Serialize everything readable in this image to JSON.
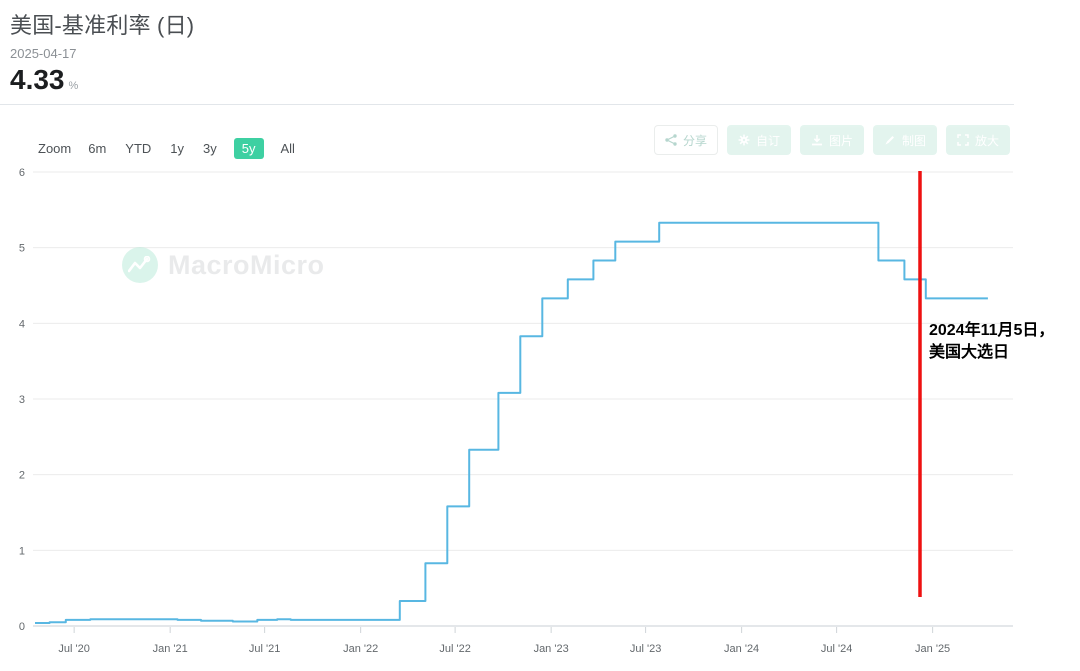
{
  "header": {
    "title": "美国-基准利率 (日)",
    "date": "2025-04-17",
    "value": "4.33",
    "unit": "%"
  },
  "toolbar": {
    "zoom_label": "Zoom",
    "ranges": [
      {
        "label": "6m",
        "selected": false
      },
      {
        "label": "YTD",
        "selected": false
      },
      {
        "label": "1y",
        "selected": false
      },
      {
        "label": "3y",
        "selected": false
      },
      {
        "label": "5y",
        "selected": true
      },
      {
        "label": "All",
        "selected": false
      }
    ],
    "actions": [
      {
        "label": "分享",
        "icon": "share-icon",
        "style": "outline"
      },
      {
        "label": "自订",
        "icon": "gear-icon",
        "style": "teal"
      },
      {
        "label": "图片",
        "icon": "download-icon",
        "style": "teal"
      },
      {
        "label": "制图",
        "icon": "pencil-icon",
        "style": "teal"
      },
      {
        "label": "放大",
        "icon": "expand-icon",
        "style": "teal"
      }
    ]
  },
  "watermark": {
    "text": "MacroMicro"
  },
  "annotation": {
    "line1": "2024年11月5日，",
    "line2": "美国大选日",
    "marked_date": "2024-11-05"
  },
  "colors": {
    "line": "#58b7e2",
    "selected_range_bg": "#3ed0a2",
    "red_line": "#ee1111",
    "grid": "#ebebeb",
    "axis": "#c9cfd4",
    "tick_label": "#63686c"
  },
  "chart_data": {
    "type": "line",
    "step": true,
    "title": "美国-基准利率 (日)",
    "ylabel": "",
    "xlabel": "",
    "ylim": [
      0,
      6
    ],
    "yticks": [
      0,
      1,
      2,
      3,
      4,
      5,
      6
    ],
    "x_domain": [
      "2020-04-17",
      "2025-06-04"
    ],
    "xticks": [
      [
        "2020-07-01",
        "Jul '20"
      ],
      [
        "2021-01-01",
        "Jan '21"
      ],
      [
        "2021-07-01",
        "Jul '21"
      ],
      [
        "2022-01-01",
        "Jan '22"
      ],
      [
        "2022-07-01",
        "Jul '22"
      ],
      [
        "2023-01-01",
        "Jan '23"
      ],
      [
        "2023-07-01",
        "Jul '23"
      ],
      [
        "2024-01-01",
        "Jan '24"
      ],
      [
        "2024-07-01",
        "Jul '24"
      ],
      [
        "2025-01-01",
        "Jan '25"
      ]
    ],
    "grid": true,
    "legend": "none",
    "series": [
      {
        "name": "美国-基准利率",
        "points": [
          [
            "2020-04-17",
            0.04
          ],
          [
            "2020-05-15",
            0.05
          ],
          [
            "2020-06-15",
            0.08
          ],
          [
            "2020-08-01",
            0.09
          ],
          [
            "2020-09-15",
            0.09
          ],
          [
            "2021-01-15",
            0.08
          ],
          [
            "2021-03-01",
            0.07
          ],
          [
            "2021-05-01",
            0.06
          ],
          [
            "2021-06-17",
            0.08
          ],
          [
            "2021-07-25",
            0.09
          ],
          [
            "2021-08-20",
            0.08
          ],
          [
            "2021-12-01",
            0.08
          ],
          [
            "2022-02-01",
            0.08
          ],
          [
            "2022-03-17",
            0.33
          ],
          [
            "2022-05-05",
            0.83
          ],
          [
            "2022-06-16",
            1.58
          ],
          [
            "2022-07-28",
            2.33
          ],
          [
            "2022-09-22",
            3.08
          ],
          [
            "2022-11-03",
            3.83
          ],
          [
            "2022-12-15",
            4.33
          ],
          [
            "2023-02-02",
            4.58
          ],
          [
            "2023-03-23",
            4.83
          ],
          [
            "2023-05-04",
            5.08
          ],
          [
            "2023-07-27",
            5.33
          ],
          [
            "2024-09-19",
            4.83
          ],
          [
            "2024-11-08",
            4.58
          ],
          [
            "2024-12-19",
            4.33
          ],
          [
            "2025-04-17",
            4.33
          ]
        ]
      }
    ]
  }
}
